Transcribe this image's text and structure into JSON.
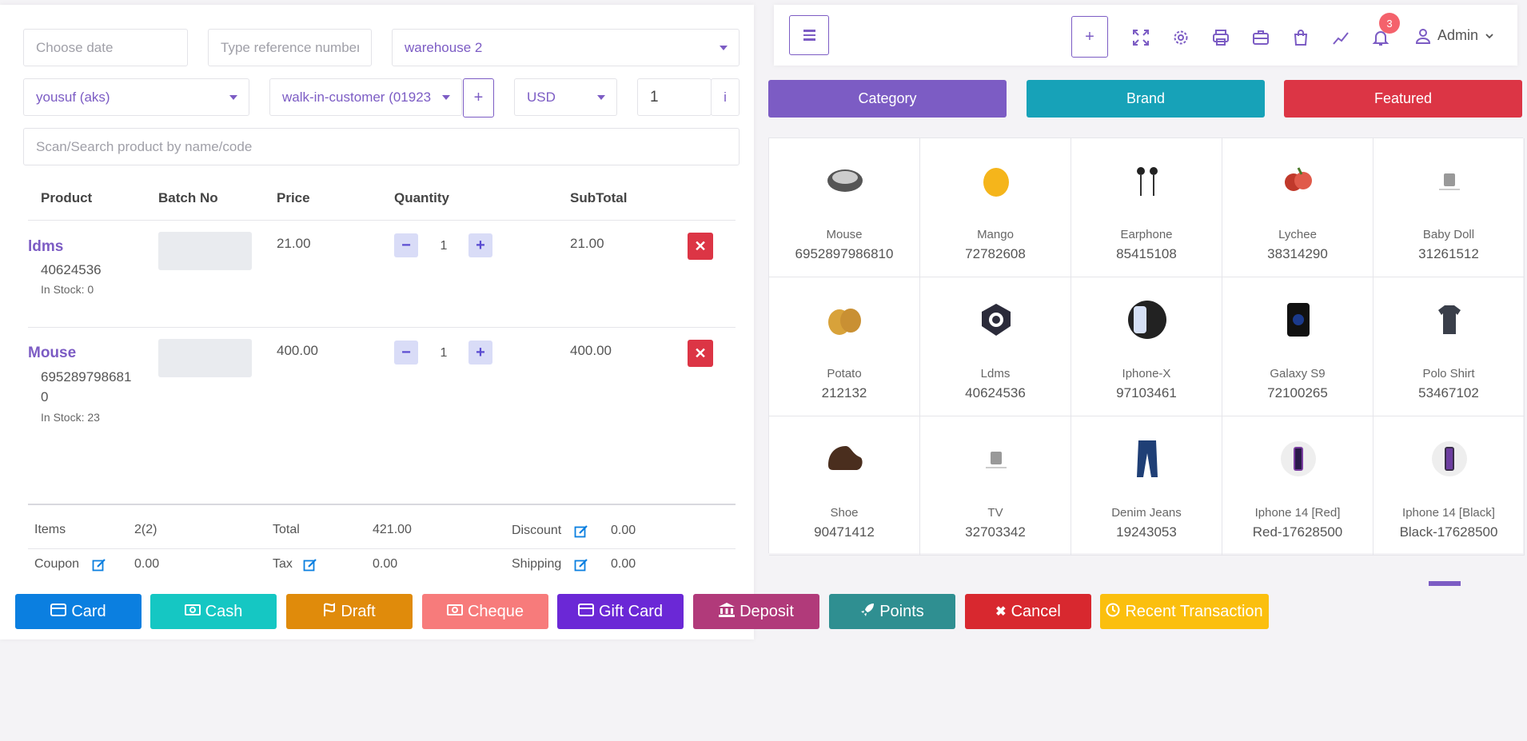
{
  "form": {
    "date_placeholder": "Choose date",
    "reference_placeholder": "Type reference number",
    "warehouse": "warehouse 2",
    "biller": "yousuf (aks)",
    "customer": "walk-in-customer (01923",
    "currency": "USD",
    "exchange_rate": "1",
    "info_label": "i",
    "search_placeholder": "Scan/Search product by name/code"
  },
  "table": {
    "headers": [
      "Product",
      "Batch No",
      "Price",
      "Quantity",
      "SubTotal"
    ],
    "rows": [
      {
        "name": "ldms",
        "code": "40624536",
        "stock": "In Stock: 0",
        "price": "21.00",
        "qty": "1",
        "subtotal": "21.00"
      },
      {
        "name": "Mouse",
        "code": "6952897986810",
        "stock": "In Stock: 23",
        "price": "400.00",
        "qty": "1",
        "subtotal": "400.00"
      }
    ]
  },
  "totals": {
    "items_label": "Items",
    "items_value": "2(2)",
    "total_label": "Total",
    "total_value": "421.00",
    "discount_label": "Discount",
    "discount_value": "0.00",
    "coupon_label": "Coupon",
    "coupon_value": "0.00",
    "tax_label": "Tax",
    "tax_value": "0.00",
    "shipping_label": "Shipping",
    "shipping_value": "0.00"
  },
  "payment_buttons": [
    {
      "label": "Card",
      "icon": "credit-card-icon",
      "color": "#0b7fe0"
    },
    {
      "label": "Cash",
      "icon": "money-icon",
      "color": "#15c7c3"
    },
    {
      "label": "Draft",
      "icon": "flag-icon",
      "color": "#e08b0b"
    },
    {
      "label": "Cheque",
      "icon": "money-icon",
      "color": "#f77b7b"
    },
    {
      "label": "Gift Card",
      "icon": "credit-card-icon",
      "color": "#6b28d6"
    },
    {
      "label": "Deposit",
      "icon": "bank-icon",
      "color": "#b13a7a"
    },
    {
      "label": "Points",
      "icon": "rocket-icon",
      "color": "#2f8f91"
    },
    {
      "label": "Cancel",
      "icon": "close-icon",
      "color": "#d8282f"
    },
    {
      "label": "Recent Transaction",
      "icon": "clock-icon",
      "color": "#fbbf0e"
    }
  ],
  "topbar": {
    "add_label": "+",
    "notification_count": "3",
    "user": "Admin"
  },
  "tabs": {
    "category": "Category",
    "brand": "Brand",
    "featured": "Featured",
    "category_color": "#7c5cc4",
    "brand_color": "#17a2b8",
    "featured_color": "#dc3545"
  },
  "products": [
    {
      "name": "Mouse",
      "code": "6952897986810"
    },
    {
      "name": "Mango",
      "code": "72782608"
    },
    {
      "name": "Earphone",
      "code": "85415108"
    },
    {
      "name": "Lychee",
      "code": "38314290"
    },
    {
      "name": "Baby Doll",
      "code": "31261512"
    },
    {
      "name": "Potato",
      "code": "212132"
    },
    {
      "name": "Ldms",
      "code": "40624536"
    },
    {
      "name": "Iphone-X",
      "code": "97103461"
    },
    {
      "name": "Galaxy S9",
      "code": "72100265"
    },
    {
      "name": "Polo Shirt",
      "code": "53467102"
    },
    {
      "name": "Shoe",
      "code": "90471412"
    },
    {
      "name": "TV",
      "code": "32703342"
    },
    {
      "name": "Denim Jeans",
      "code": "19243053"
    },
    {
      "name": "Iphone 14 [Red]",
      "code": "Red-17628500"
    },
    {
      "name": "Iphone 14 [Black]",
      "code": "Black-17628500"
    }
  ]
}
